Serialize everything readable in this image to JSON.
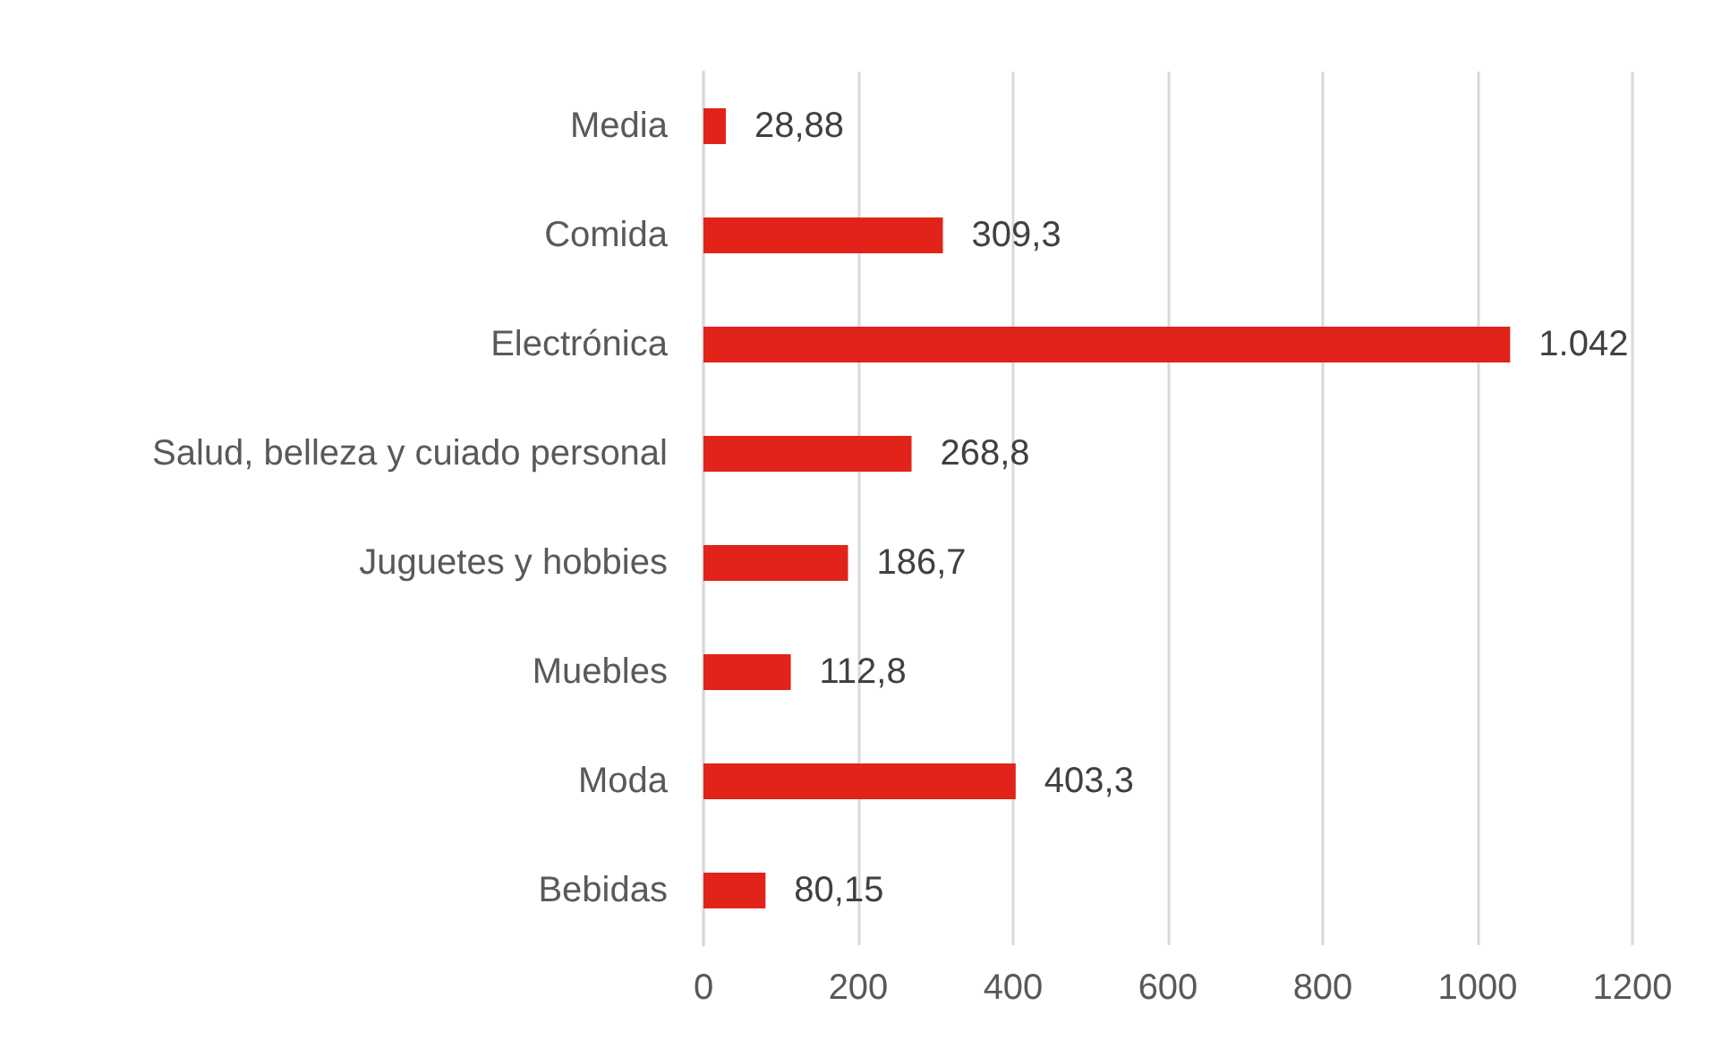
{
  "chart_data": {
    "type": "bar",
    "orientation": "horizontal",
    "categories": [
      "Media",
      "Comida",
      "Electrónica",
      "Salud, belleza y cuiado personal",
      "Juguetes y hobbies",
      "Muebles",
      "Moda",
      "Bebidas"
    ],
    "values": [
      28.88,
      309.3,
      1042,
      268.8,
      186.7,
      112.8,
      403.3,
      80.15
    ],
    "value_labels": [
      "28,88",
      "309,3",
      "1.042",
      "268,8",
      "186,7",
      "112,8",
      "403,3",
      "80,15"
    ],
    "color": "#e2231a",
    "xlim": [
      0,
      1200
    ],
    "xticks": [
      0,
      200,
      400,
      600,
      800,
      1000,
      1200
    ],
    "grid": "x"
  }
}
